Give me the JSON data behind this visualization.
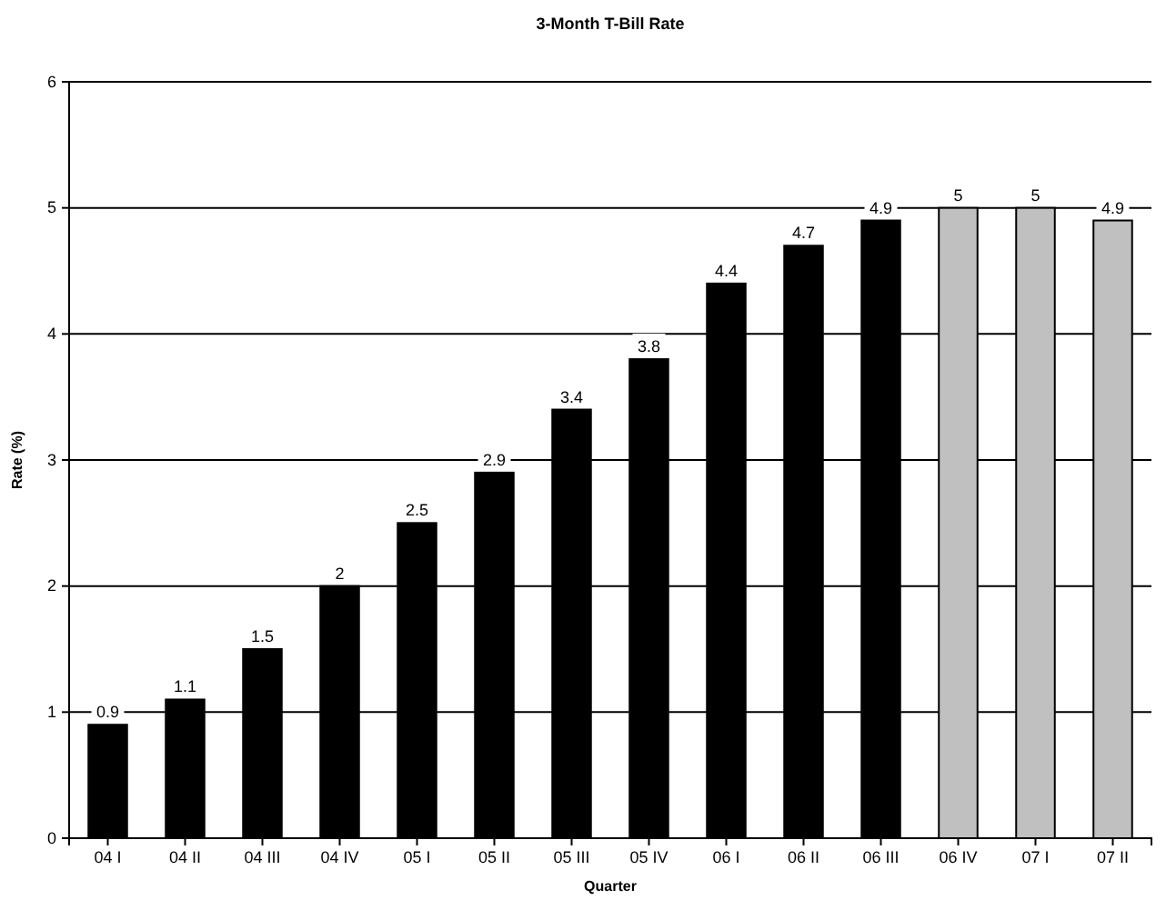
{
  "chart_data": {
    "type": "bar",
    "title": "3-Month T-Bill Rate",
    "xlabel": "Quarter",
    "ylabel": "Rate (%)",
    "categories": [
      "04 I",
      "04 II",
      "04 III",
      "04 IV",
      "05 I",
      "05 II",
      "05 III",
      "05 IV",
      "06 I",
      "06 II",
      "06 III",
      "06 IV",
      "07 I",
      "07 II"
    ],
    "values": [
      0.9,
      1.1,
      1.5,
      2,
      2.5,
      2.9,
      3.4,
      3.8,
      4.4,
      4.7,
      4.9,
      5,
      5,
      4.9
    ],
    "colors": [
      "#000000",
      "#000000",
      "#000000",
      "#000000",
      "#000000",
      "#000000",
      "#000000",
      "#000000",
      "#000000",
      "#000000",
      "#000000",
      "#c0c0c0",
      "#c0c0c0",
      "#c0c0c0"
    ],
    "ylim": [
      0,
      6
    ],
    "yticks": [
      0,
      1,
      2,
      3,
      4,
      5,
      6
    ],
    "grid": "y",
    "data_labels": true
  }
}
